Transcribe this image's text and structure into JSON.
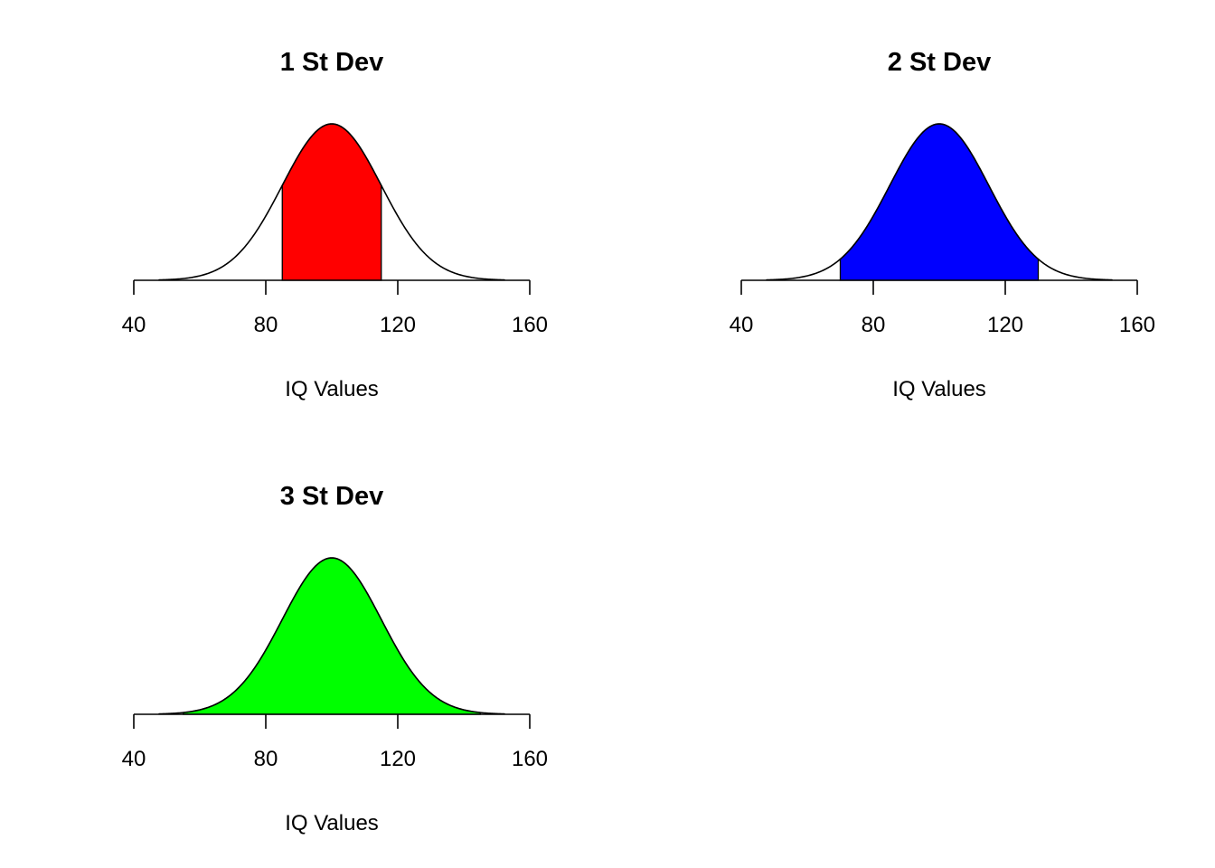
{
  "chart_data": [
    {
      "type": "area",
      "title": "1 St Dev",
      "xlabel": "IQ Values",
      "ylabel": "",
      "xlim": [
        40,
        160
      ],
      "xticks": [
        "40",
        "80",
        "120",
        "160"
      ],
      "distribution": {
        "mean": 100,
        "sd": 15
      },
      "shaded_range": [
        85,
        115
      ],
      "fill_color": "#ff0000",
      "line_color": "#000000",
      "y_axis": false,
      "grid": false
    },
    {
      "type": "area",
      "title": "2 St Dev",
      "xlabel": "IQ Values",
      "ylabel": "",
      "xlim": [
        40,
        160
      ],
      "xticks": [
        "40",
        "80",
        "120",
        "160"
      ],
      "distribution": {
        "mean": 100,
        "sd": 15
      },
      "shaded_range": [
        70,
        130
      ],
      "fill_color": "#0000ff",
      "line_color": "#000000",
      "y_axis": false,
      "grid": false
    },
    {
      "type": "area",
      "title": "3 St Dev",
      "xlabel": "IQ Values",
      "ylabel": "",
      "xlim": [
        40,
        160
      ],
      "xticks": [
        "40",
        "80",
        "120",
        "160"
      ],
      "distribution": {
        "mean": 100,
        "sd": 15
      },
      "shaded_range": [
        55,
        145
      ],
      "fill_color": "#00ff00",
      "line_color": "#000000",
      "y_axis": false,
      "grid": false
    }
  ]
}
